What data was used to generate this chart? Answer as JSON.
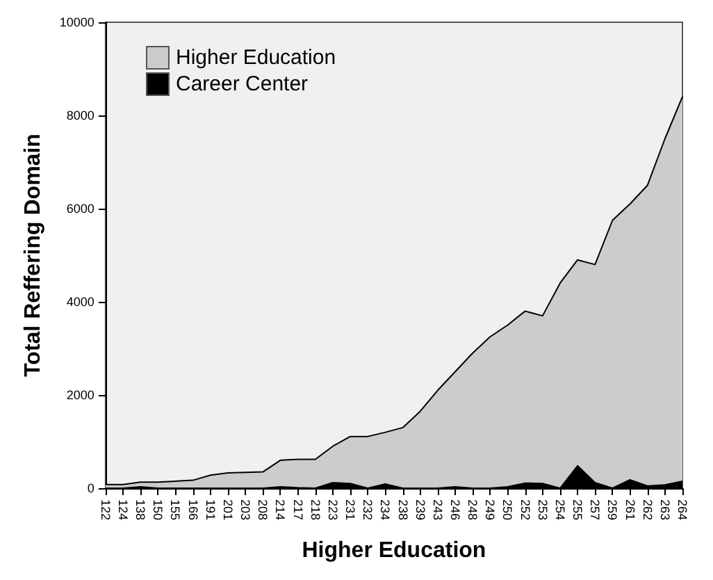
{
  "chart_data": {
    "type": "area",
    "xlabel": "Higher Education",
    "ylabel": "Total Reffering Domain",
    "categories": [
      "122",
      "124",
      "138",
      "150",
      "155",
      "166",
      "191",
      "201",
      "203",
      "208",
      "214",
      "217",
      "218",
      "223",
      "231",
      "232",
      "234",
      "238",
      "239",
      "243",
      "246",
      "248",
      "249",
      "250",
      "252",
      "253",
      "254",
      "255",
      "257",
      "259",
      "261",
      "262",
      "263",
      "264"
    ],
    "series": [
      {
        "name": "Higher Education",
        "color": "#cccccc",
        "values": [
          80,
          80,
          130,
          130,
          150,
          170,
          280,
          330,
          340,
          350,
          600,
          620,
          620,
          900,
          1110,
          1110,
          1200,
          1300,
          1650,
          2100,
          2500,
          2900,
          3250,
          3500,
          3800,
          3700,
          4400,
          4900,
          4800,
          5750,
          6100,
          6500,
          7500,
          8400
        ]
      },
      {
        "name": "Career Center",
        "color": "#000000",
        "values": [
          0,
          0,
          30,
          0,
          0,
          0,
          0,
          0,
          0,
          0,
          30,
          10,
          0,
          120,
          100,
          0,
          90,
          0,
          0,
          0,
          30,
          0,
          0,
          30,
          110,
          100,
          0,
          480,
          120,
          0,
          180,
          50,
          70,
          150
        ]
      }
    ],
    "ylim": [
      0,
      10000
    ],
    "yticks": [
      0,
      2000,
      4000,
      6000,
      8000,
      10000
    ],
    "grid": false,
    "legend": "top left",
    "marker": "none"
  }
}
